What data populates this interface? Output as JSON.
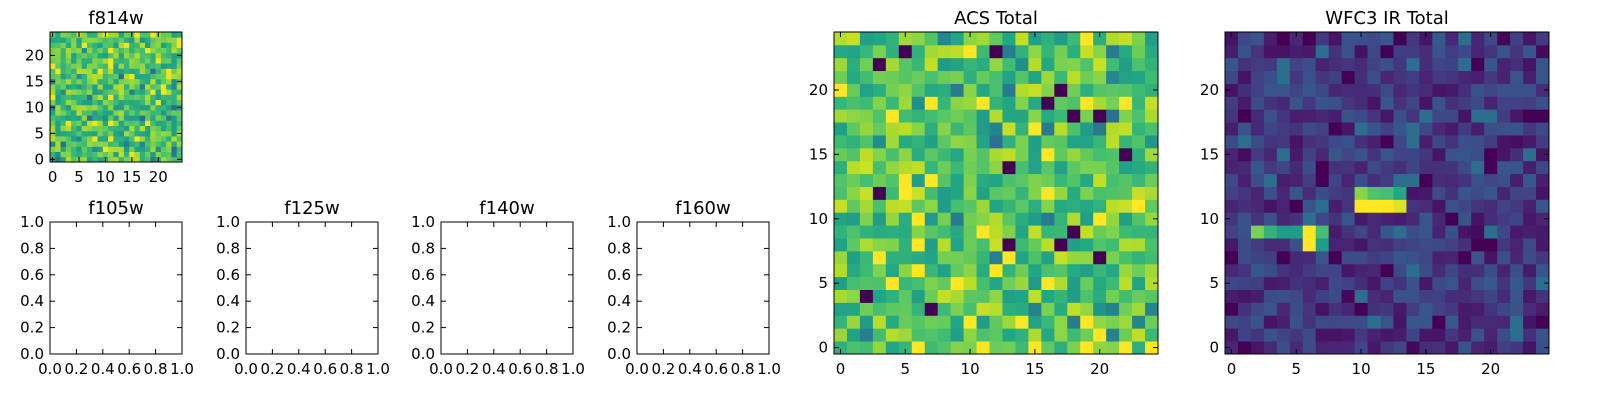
{
  "chart_data": [
    {
      "type": "heatmap",
      "title": "f814w",
      "colormap": "viridis",
      "grid_size": [
        25,
        25
      ],
      "xlim": [
        -0.5,
        24.5
      ],
      "ylim": [
        -0.5,
        24.5
      ],
      "xticks": [
        0,
        5,
        10,
        15,
        20
      ],
      "yticks": [
        0,
        5,
        10,
        15,
        20
      ],
      "pattern": "noise",
      "value_range": [
        0.55,
        0.9
      ],
      "seed": 7
    },
    {
      "type": "empty_axes",
      "title": "f105w",
      "xlim": [
        0,
        1
      ],
      "ylim": [
        0,
        1
      ],
      "xticks": [
        "0.0",
        "0.2",
        "0.4",
        "0.6",
        "0.8",
        "1.0"
      ],
      "yticks": [
        "0.0",
        "0.2",
        "0.4",
        "0.6",
        "0.8",
        "1.0"
      ]
    },
    {
      "type": "empty_axes",
      "title": "f125w",
      "xlim": [
        0,
        1
      ],
      "ylim": [
        0,
        1
      ],
      "xticks": [
        "0.0",
        "0.2",
        "0.4",
        "0.6",
        "0.8",
        "1.0"
      ],
      "yticks": [
        "0.0",
        "0.2",
        "0.4",
        "0.6",
        "0.8",
        "1.0"
      ]
    },
    {
      "type": "empty_axes",
      "title": "f140w",
      "xlim": [
        0,
        1
      ],
      "ylim": [
        0,
        1
      ],
      "xticks": [
        "0.0",
        "0.2",
        "0.4",
        "0.6",
        "0.8",
        "1.0"
      ],
      "yticks": [
        "0.0",
        "0.2",
        "0.4",
        "0.6",
        "0.8",
        "1.0"
      ]
    },
    {
      "type": "empty_axes",
      "title": "f160w",
      "xlim": [
        0,
        1
      ],
      "ylim": [
        0,
        1
      ],
      "xticks": [
        "0.0",
        "0.2",
        "0.4",
        "0.6",
        "0.8",
        "1.0"
      ],
      "yticks": [
        "0.0",
        "0.2",
        "0.4",
        "0.6",
        "0.8",
        "1.0"
      ]
    },
    {
      "type": "heatmap",
      "title": "ACS Total",
      "colormap": "viridis",
      "grid_size": [
        25,
        25
      ],
      "xlim": [
        -0.5,
        24.5
      ],
      "ylim": [
        -0.5,
        24.5
      ],
      "xticks": [
        0,
        5,
        10,
        15,
        20
      ],
      "yticks": [
        0,
        5,
        10,
        15,
        20
      ],
      "pattern": "noise",
      "value_range": [
        0.55,
        0.92
      ],
      "seed": 21,
      "dark_pixels": [
        [
          5,
          23
        ],
        [
          12,
          23
        ],
        [
          3,
          22
        ],
        [
          17,
          20
        ],
        [
          16,
          19
        ],
        [
          18,
          18
        ],
        [
          20,
          18
        ],
        [
          22,
          15
        ],
        [
          13,
          14
        ],
        [
          3,
          12
        ],
        [
          18,
          9
        ],
        [
          13,
          8
        ],
        [
          17,
          8
        ],
        [
          20,
          7
        ],
        [
          2,
          4
        ],
        [
          7,
          3
        ]
      ],
      "bright_pixels": [
        [
          0,
          20
        ],
        [
          7,
          19
        ],
        [
          4,
          18
        ],
        [
          15,
          17
        ],
        [
          19,
          19
        ],
        [
          3,
          7
        ],
        [
          6,
          6
        ],
        [
          20,
          1
        ],
        [
          22,
          0
        ],
        [
          5,
          12
        ],
        [
          10,
          2
        ],
        [
          14,
          2
        ]
      ]
    },
    {
      "type": "heatmap",
      "title": "WFC3 IR Total",
      "colormap": "viridis",
      "grid_size": [
        25,
        25
      ],
      "xlim": [
        -0.5,
        24.5
      ],
      "ylim": [
        -0.5,
        24.5
      ],
      "xticks": [
        0,
        5,
        10,
        15,
        20
      ],
      "yticks": [
        0,
        5,
        10,
        15,
        20
      ],
      "pattern": "noise",
      "value_range": [
        0.05,
        0.28
      ],
      "seed": 43,
      "hot_pixels": [
        [
          10,
          12,
          0.82
        ],
        [
          11,
          12,
          0.72
        ],
        [
          12,
          12,
          0.7
        ],
        [
          13,
          12,
          0.6
        ],
        [
          10,
          11,
          1.0
        ],
        [
          11,
          11,
          1.0
        ],
        [
          12,
          11,
          1.0
        ],
        [
          13,
          11,
          0.95
        ],
        [
          2,
          9,
          0.8
        ],
        [
          3,
          9,
          0.65
        ],
        [
          4,
          9,
          0.55
        ],
        [
          5,
          9,
          0.55
        ],
        [
          6,
          9,
          1.0
        ],
        [
          7,
          9,
          0.7
        ],
        [
          6,
          8,
          1.0
        ],
        [
          7,
          8,
          0.55
        ]
      ]
    }
  ]
}
